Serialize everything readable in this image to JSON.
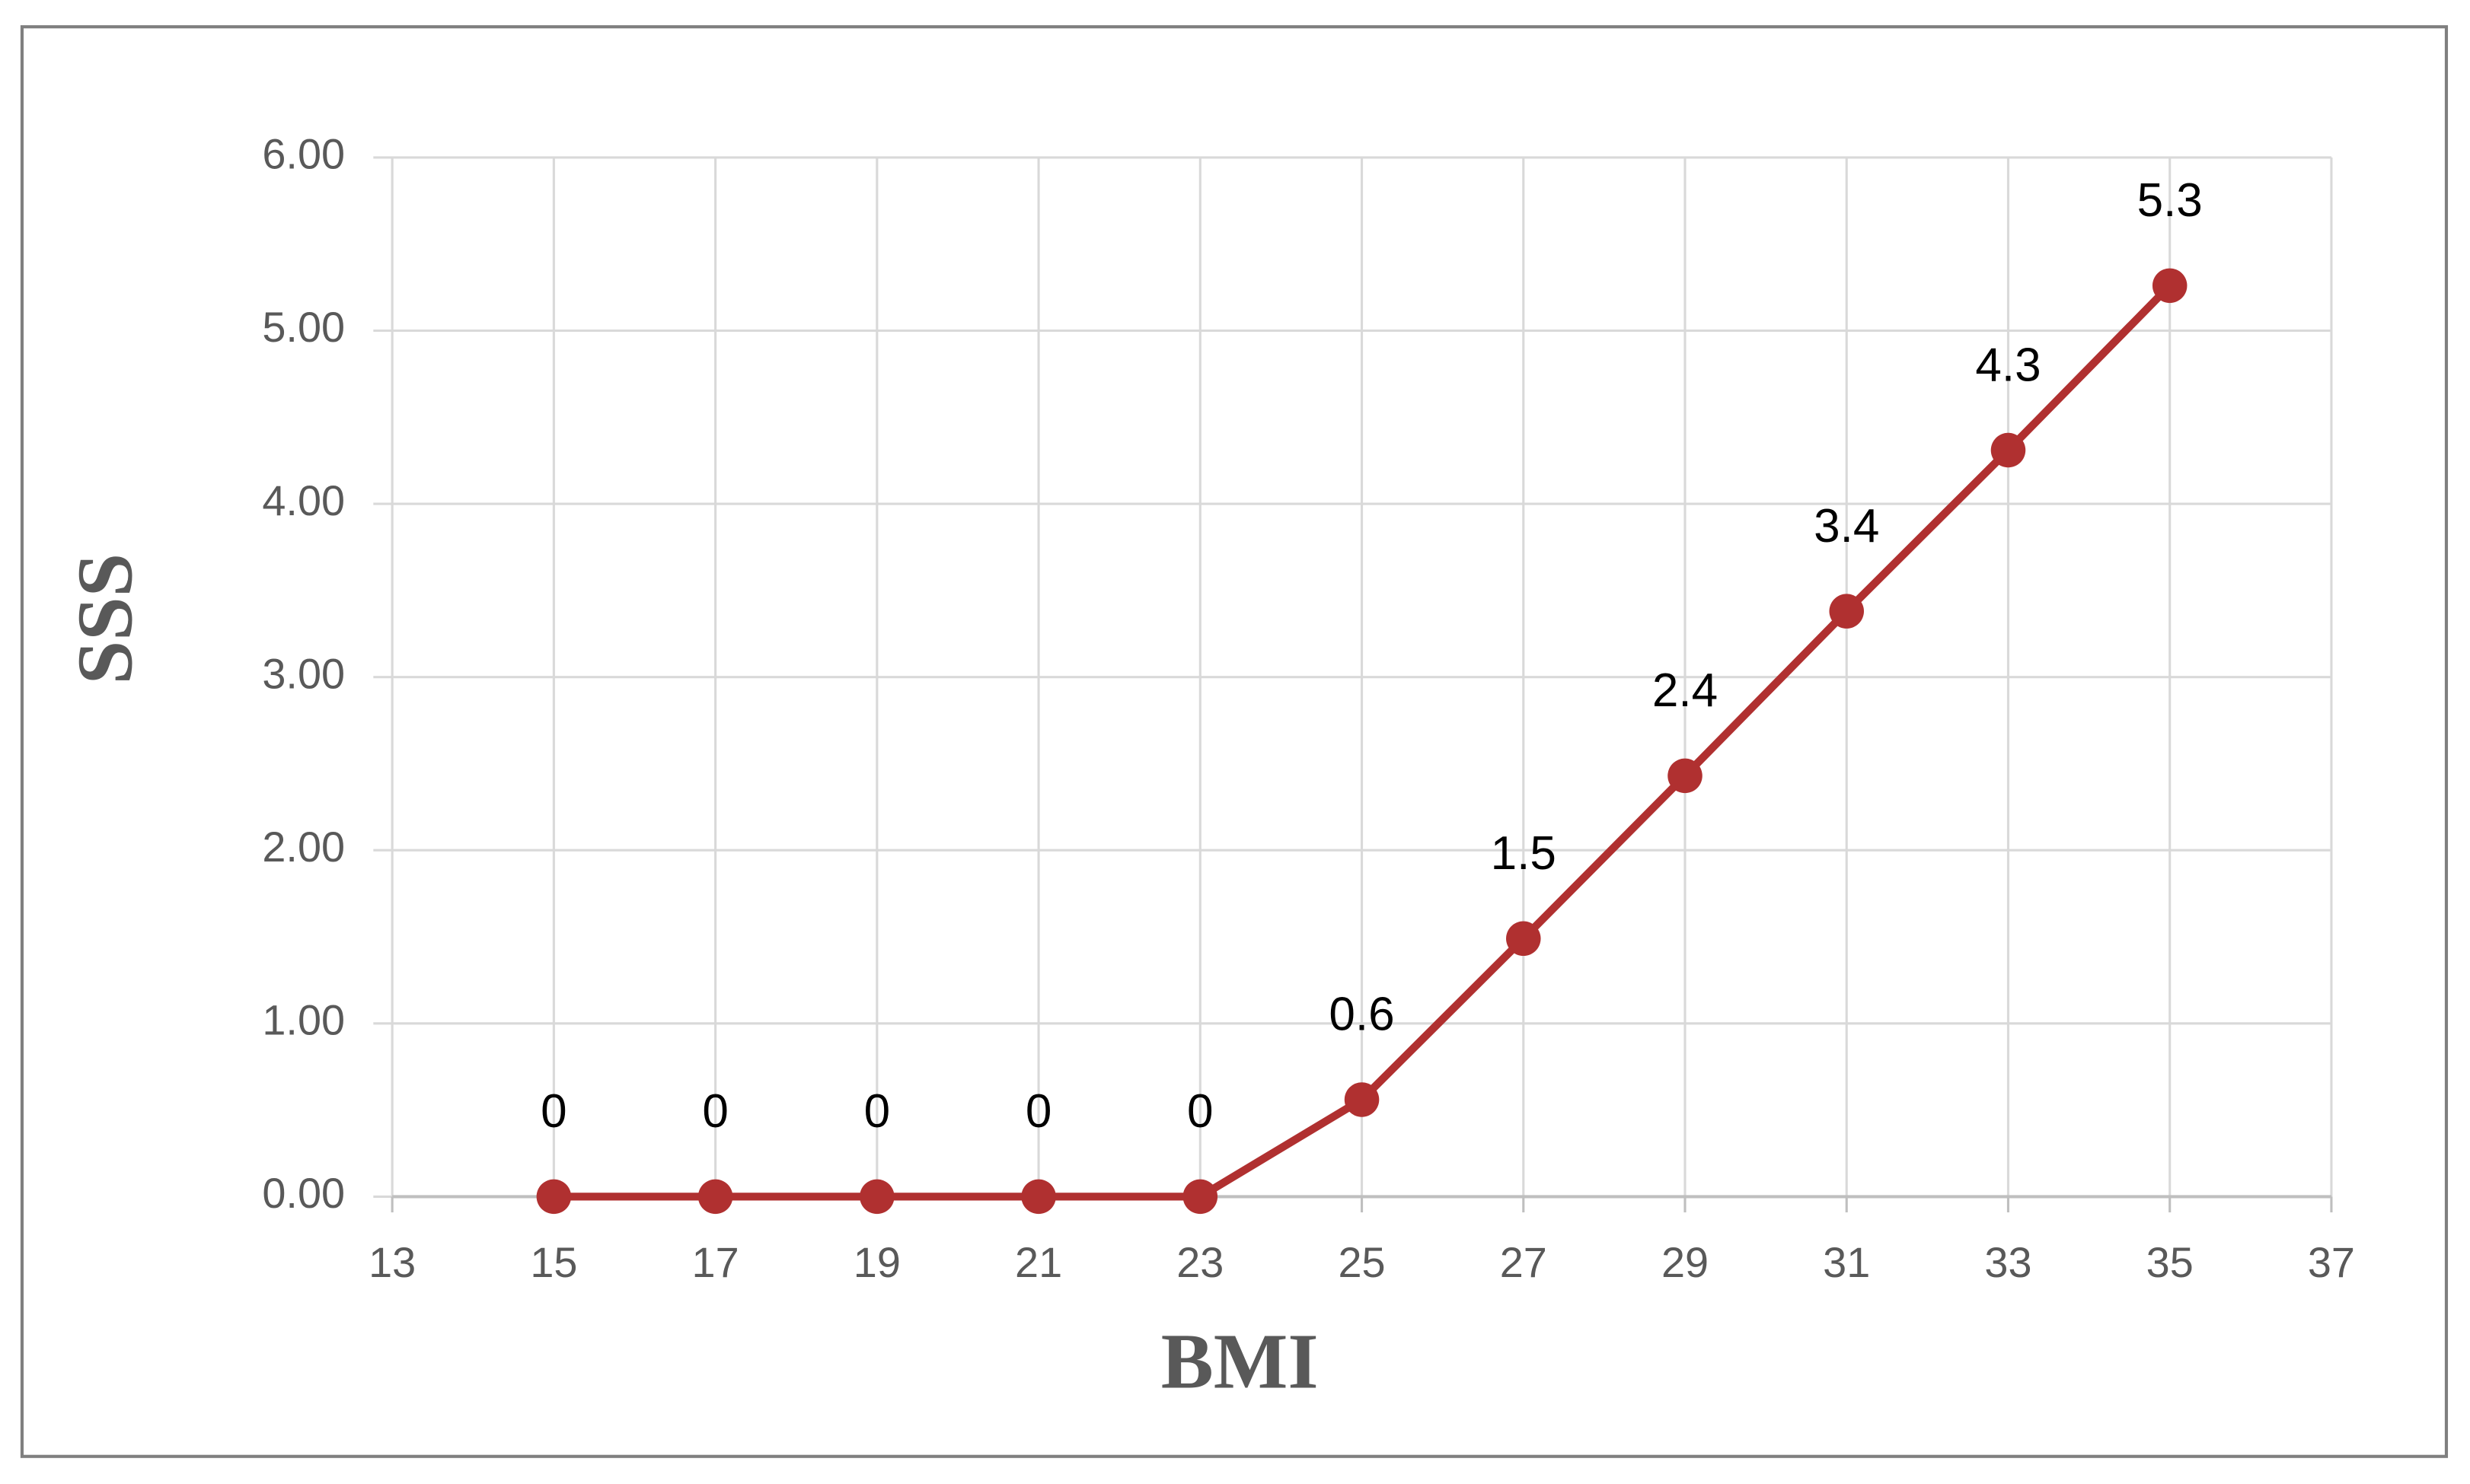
{
  "chart_data": {
    "type": "line",
    "xlabel": "BMI",
    "ylabel": "SSS",
    "x": [
      15,
      17,
      19,
      21,
      23,
      25,
      27,
      29,
      31,
      33,
      35
    ],
    "series": [
      {
        "color": "#b03030",
        "values": [
          0,
          0,
          0,
          0,
          0,
          0.56,
          1.49,
          2.43,
          3.38,
          4.31,
          5.26
        ],
        "value_labels": [
          "0",
          "0",
          "0",
          "0",
          "0",
          "0.6",
          "1.5",
          "2.4",
          "3.4",
          "4.3",
          "5.3"
        ]
      }
    ],
    "xlim": [
      13,
      37
    ],
    "xticks": [
      13,
      15,
      17,
      19,
      21,
      23,
      25,
      27,
      29,
      31,
      33,
      35,
      37
    ],
    "ylim": [
      0,
      6
    ],
    "yticks": [
      {
        "value": 0,
        "label": "0.00"
      },
      {
        "value": 1,
        "label": "1.00"
      },
      {
        "value": 2,
        "label": "2.00"
      },
      {
        "value": 3,
        "label": "3.00"
      },
      {
        "value": 4,
        "label": "4.00"
      },
      {
        "value": 5,
        "label": "5.00"
      },
      {
        "value": 6,
        "label": "6.00"
      }
    ],
    "grid": true
  }
}
